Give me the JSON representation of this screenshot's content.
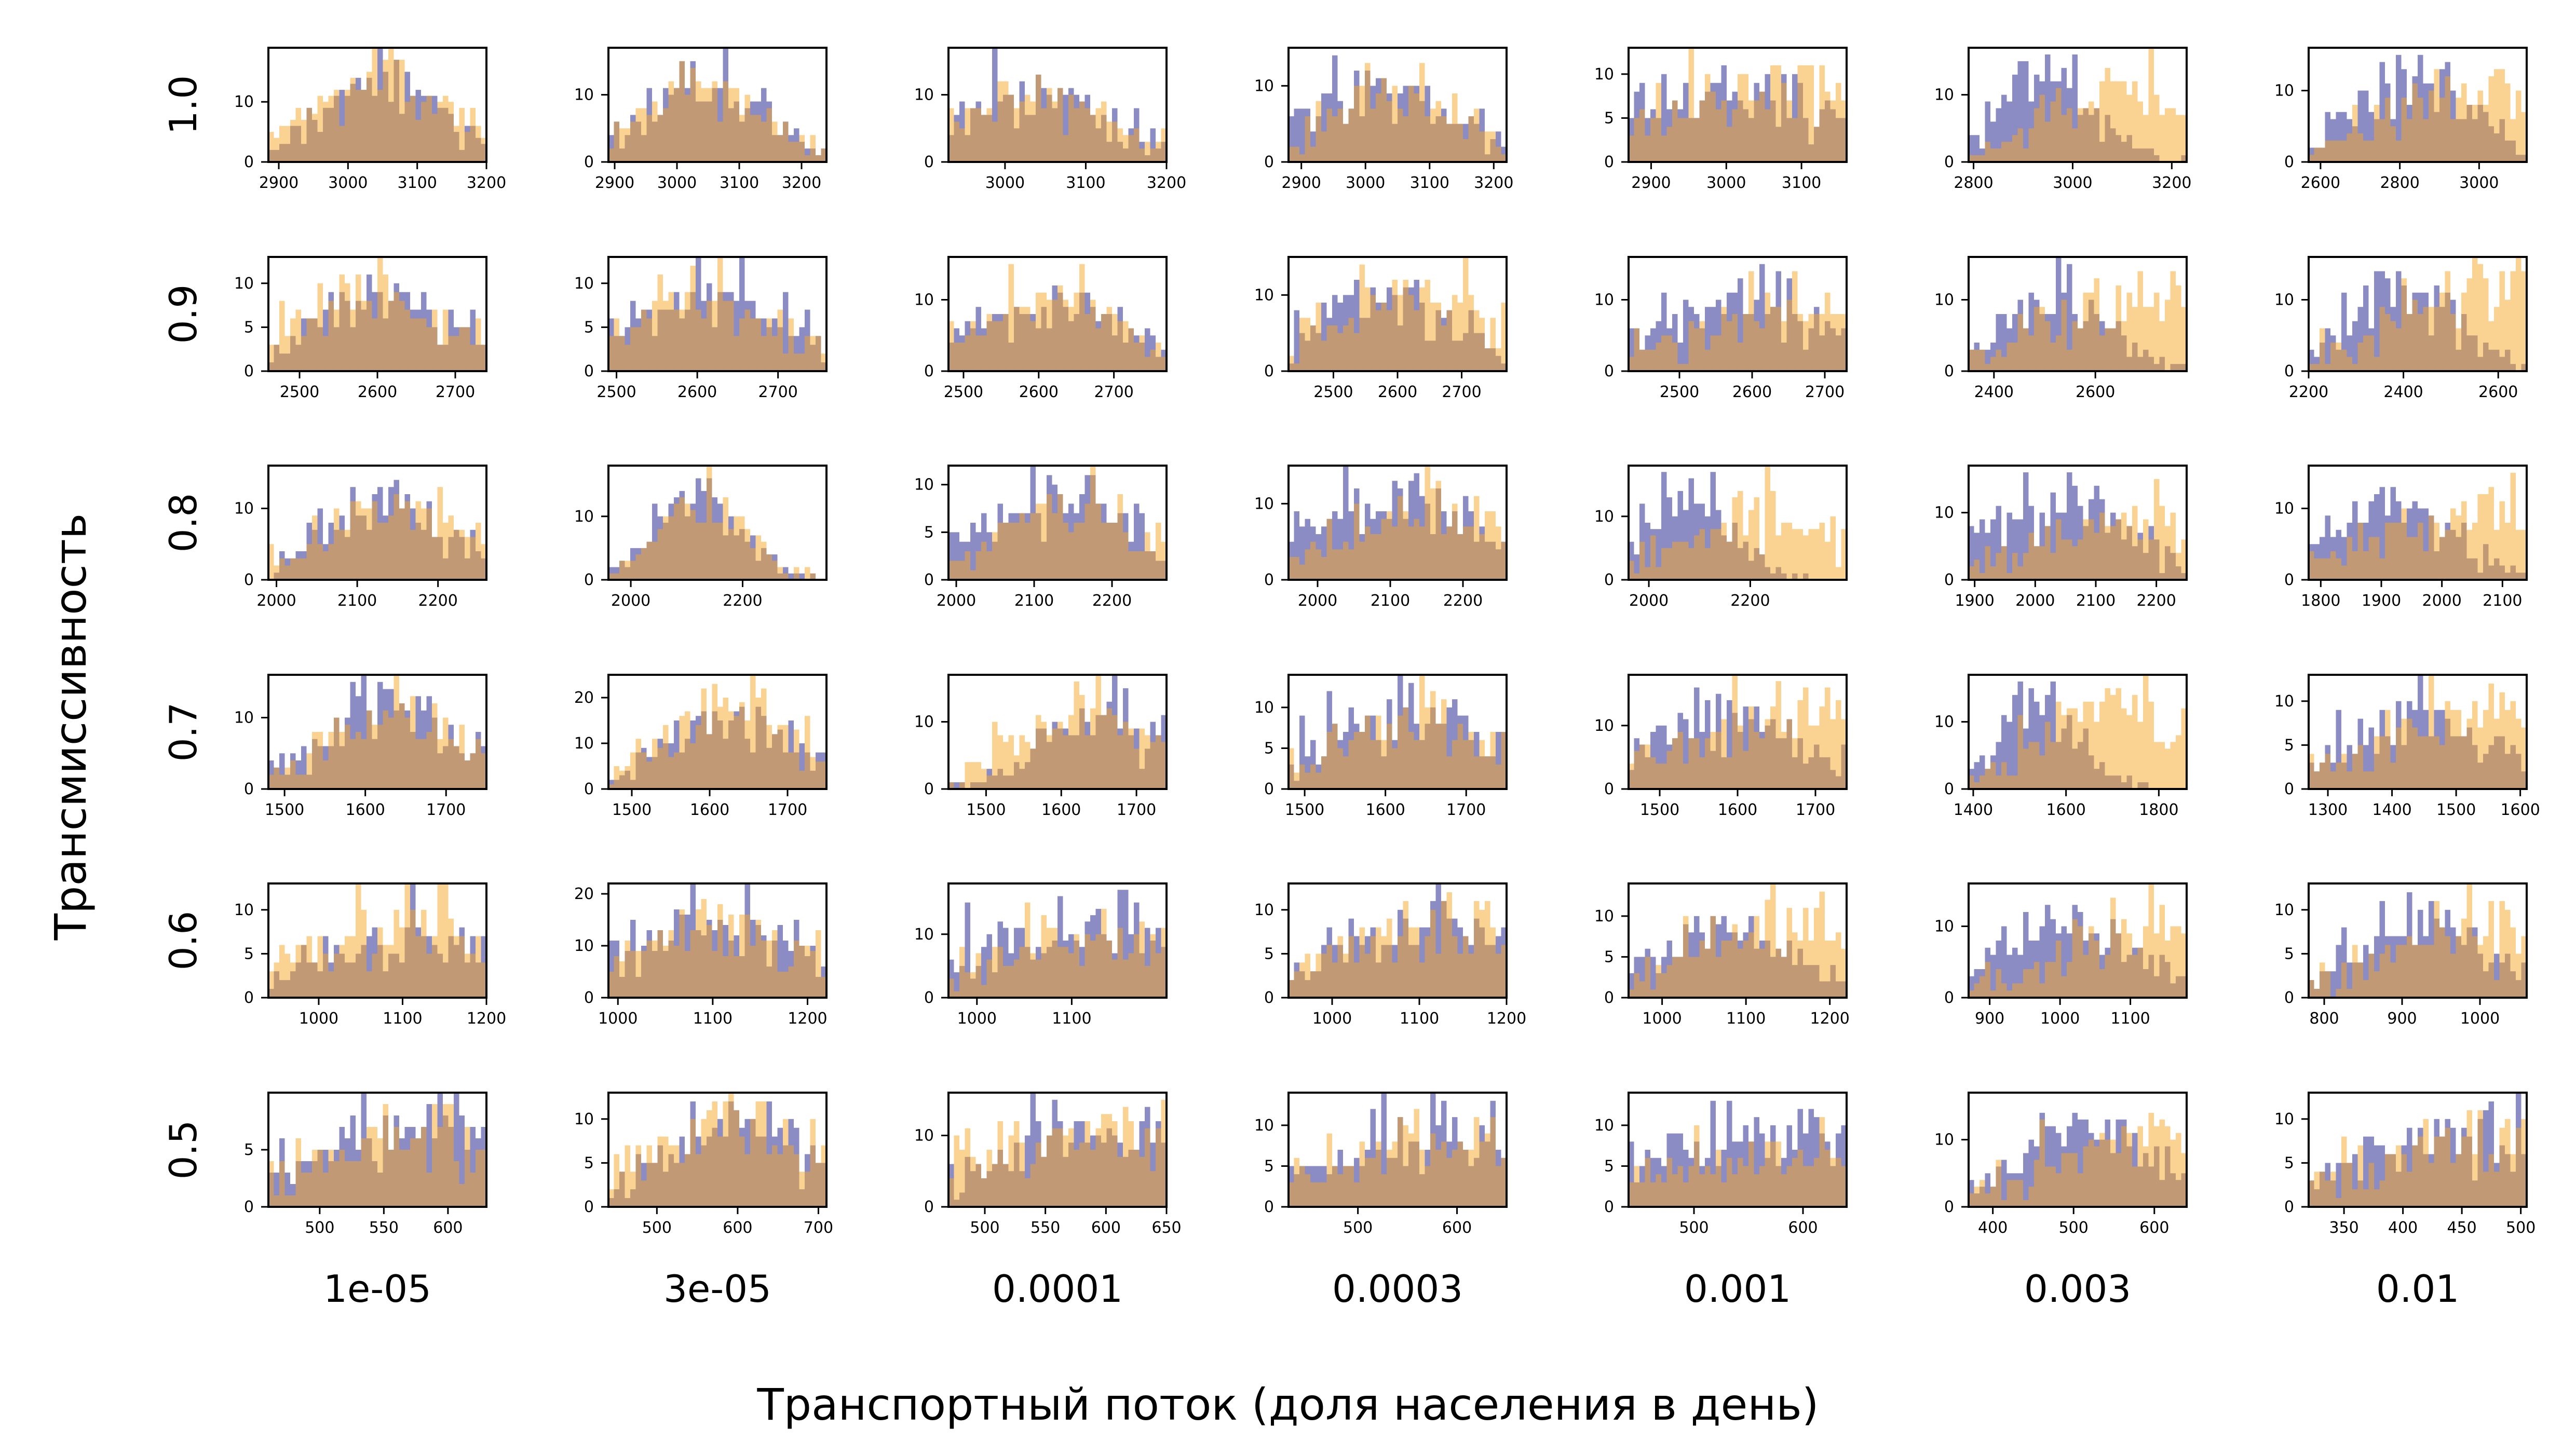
{
  "figure": {
    "xlabel": "Транспортный поток (доля населения в день)",
    "ylabel": "Трансмиссивность",
    "col_labels": [
      "1e-05",
      "3e-05",
      "0.0001",
      "0.0003",
      "0.001",
      "0.003",
      "0.01"
    ],
    "row_labels": [
      "1.0",
      "0.9",
      "0.8",
      "0.7",
      "0.6",
      "0.5"
    ],
    "colors": {
      "series_a": "#1a1a8c",
      "series_b": "#f5a623",
      "series_alpha": 0.5
    }
  },
  "chart_data": {
    "type": "histogram",
    "panels": [
      [
        {
          "xt": [
            2900,
            3000,
            3100,
            3200
          ],
          "xr": [
            2885,
            3200
          ],
          "yt": [
            0,
            10
          ],
          "ymax": 19,
          "a": [
            2978,
            3050,
            60
          ],
          "b": [
            2960,
            3040,
            70
          ]
        },
        {
          "xt": [
            2900,
            3000,
            3100,
            3200
          ],
          "xr": [
            2890,
            3240
          ],
          "yt": [
            0,
            10
          ],
          "ymax": 17,
          "a": [
            2955,
            3040,
            60
          ],
          "b": [
            2960,
            3040,
            65
          ]
        },
        {
          "xt": [
            3000,
            3100,
            3200
          ],
          "xr": [
            2930,
            3200
          ],
          "yt": [
            0,
            10
          ],
          "ymax": 17,
          "a": [
            2960,
            3040,
            60
          ],
          "b": [
            2950,
            3030,
            70
          ]
        },
        {
          "xt": [
            2900,
            3000,
            3100,
            3200
          ],
          "xr": [
            2880,
            3220
          ],
          "yt": [
            0,
            10
          ],
          "ymax": 15,
          "a": [
            2900,
            3010,
            55
          ],
          "b": [
            2940,
            3040,
            70
          ]
        },
        {
          "xt": [
            2900,
            3000,
            3100
          ],
          "xr": [
            2870,
            3160
          ],
          "yt": [
            0,
            5,
            10
          ],
          "ymax": 13,
          "a": [
            2880,
            3000,
            60
          ],
          "b": [
            2930,
            3060,
            55
          ]
        },
        {
          "xt": [
            2800,
            3000,
            3200
          ],
          "xr": [
            2790,
            3230
          ],
          "yt": [
            0,
            10
          ],
          "ymax": 17,
          "a": [
            2850,
            2940,
            60
          ],
          "b": [
            2950,
            3080,
            65
          ]
        },
        {
          "xt": [
            2600,
            2800,
            3000
          ],
          "xr": [
            2570,
            3120
          ],
          "yt": [
            0,
            10
          ],
          "ymax": 16,
          "a": [
            2700,
            2840,
            60
          ],
          "b": [
            2780,
            2980,
            70
          ]
        }
      ],
      [
        {
          "xt": [
            2500,
            2600,
            2700
          ],
          "xr": [
            2460,
            2740
          ],
          "yt": [
            0,
            5,
            10
          ],
          "ymax": 13,
          "a": [
            2520,
            2600,
            55
          ],
          "b": [
            2520,
            2600,
            60
          ]
        },
        {
          "xt": [
            2500,
            2600,
            2700
          ],
          "xr": [
            2490,
            2760
          ],
          "yt": [
            0,
            5,
            10
          ],
          "ymax": 13,
          "a": [
            2510,
            2600,
            55
          ],
          "b": [
            2520,
            2610,
            60
          ]
        },
        {
          "xt": [
            2500,
            2600,
            2700
          ],
          "xr": [
            2480,
            2770
          ],
          "yt": [
            0,
            10
          ],
          "ymax": 16,
          "a": [
            2510,
            2610,
            60
          ],
          "b": [
            2530,
            2610,
            65
          ]
        },
        {
          "xt": [
            2500,
            2600,
            2700
          ],
          "xr": [
            2430,
            2770
          ],
          "yt": [
            0,
            10
          ],
          "ymax": 15,
          "a": [
            2470,
            2580,
            60
          ],
          "b": [
            2510,
            2630,
            65
          ]
        },
        {
          "xt": [
            2500,
            2600,
            2700
          ],
          "xr": [
            2430,
            2730
          ],
          "yt": [
            0,
            10
          ],
          "ymax": 16,
          "a": [
            2460,
            2570,
            60
          ],
          "b": [
            2540,
            2680,
            60
          ]
        },
        {
          "xt": [
            2400,
            2600
          ],
          "xr": [
            2350,
            2780
          ],
          "yt": [
            0,
            10
          ],
          "ymax": 16,
          "a": [
            2430,
            2520,
            60
          ],
          "b": [
            2520,
            2680,
            65
          ]
        },
        {
          "xt": [
            2200,
            2400,
            2600
          ],
          "xr": [
            2200,
            2660
          ],
          "yt": [
            0,
            10
          ],
          "ymax": 16,
          "a": [
            2300,
            2400,
            60
          ],
          "b": [
            2390,
            2570,
            65
          ]
        }
      ],
      [
        {
          "xt": [
            2000,
            2100,
            2200
          ],
          "xr": [
            1990,
            2260
          ],
          "yt": [
            0,
            10
          ],
          "ymax": 16,
          "a": [
            2080,
            2140,
            60
          ],
          "b": [
            2070,
            2150,
            65
          ]
        },
        {
          "xt": [
            2000,
            2200
          ],
          "xr": [
            1960,
            2350
          ],
          "yt": [
            0,
            10
          ],
          "ymax": 18,
          "a": [
            2060,
            2120,
            60
          ],
          "b": [
            2070,
            2130,
            65
          ]
        },
        {
          "xt": [
            2000,
            2100,
            2200
          ],
          "xr": [
            1990,
            2270
          ],
          "yt": [
            0,
            5,
            10
          ],
          "ymax": 12,
          "a": [
            2050,
            2130,
            60
          ],
          "b": [
            2060,
            2140,
            65
          ]
        },
        {
          "xt": [
            2000,
            2100,
            2200
          ],
          "xr": [
            1960,
            2260
          ],
          "yt": [
            0,
            10
          ],
          "ymax": 15,
          "a": [
            2020,
            2130,
            60
          ],
          "b": [
            2040,
            2150,
            65
          ]
        },
        {
          "xt": [
            2000,
            2200
          ],
          "xr": [
            1960,
            2390
          ],
          "yt": [
            0,
            10
          ],
          "ymax": 18,
          "a": [
            2010,
            2080,
            60
          ],
          "b": [
            2070,
            2220,
            60
          ]
        },
        {
          "xt": [
            1900,
            2000,
            2100,
            2200
          ],
          "xr": [
            1890,
            2250
          ],
          "yt": [
            0,
            10
          ],
          "ymax": 17,
          "a": [
            1940,
            2040,
            60
          ],
          "b": [
            2020,
            2160,
            65
          ]
        },
        {
          "xt": [
            1800,
            1900,
            2000,
            2100
          ],
          "xr": [
            1780,
            2140
          ],
          "yt": [
            0,
            10
          ],
          "ymax": 16,
          "a": [
            1830,
            1910,
            60
          ],
          "b": [
            1910,
            2060,
            65
          ]
        }
      ],
      [
        {
          "xt": [
            1500,
            1600,
            1700
          ],
          "xr": [
            1480,
            1750
          ],
          "yt": [
            0,
            10
          ],
          "ymax": 16,
          "a": [
            1560,
            1630,
            55
          ],
          "b": [
            1560,
            1630,
            65
          ]
        },
        {
          "xt": [
            1500,
            1600,
            1700
          ],
          "xr": [
            1470,
            1750
          ],
          "yt": [
            0,
            10,
            20
          ],
          "ymax": 25,
          "a": [
            1560,
            1630,
            55
          ],
          "b": [
            1560,
            1630,
            60
          ]
        },
        {
          "xt": [
            1500,
            1600,
            1700
          ],
          "xr": [
            1450,
            1740
          ],
          "yt": [
            0,
            10
          ],
          "ymax": 17,
          "a": [
            1580,
            1640,
            60
          ],
          "b": [
            1560,
            1640,
            65
          ]
        },
        {
          "xt": [
            1500,
            1600,
            1700
          ],
          "xr": [
            1480,
            1750
          ],
          "yt": [
            0,
            5,
            10
          ],
          "ymax": 14,
          "a": [
            1520,
            1620,
            60
          ],
          "b": [
            1550,
            1640,
            65
          ]
        },
        {
          "xt": [
            1500,
            1600,
            1700
          ],
          "xr": [
            1460,
            1740
          ],
          "yt": [
            0,
            10
          ],
          "ymax": 18,
          "a": [
            1500,
            1580,
            60
          ],
          "b": [
            1540,
            1660,
            60
          ]
        },
        {
          "xt": [
            1400,
            1600,
            1800
          ],
          "xr": [
            1390,
            1860
          ],
          "yt": [
            0,
            10
          ],
          "ymax": 17,
          "a": [
            1470,
            1540,
            60
          ],
          "b": [
            1560,
            1690,
            65
          ]
        },
        {
          "xt": [
            1300,
            1400,
            1500,
            1600
          ],
          "xr": [
            1270,
            1610
          ],
          "yt": [
            0,
            5,
            10
          ],
          "ymax": 13,
          "a": [
            1340,
            1440,
            60
          ],
          "b": [
            1400,
            1550,
            65
          ]
        }
      ],
      [
        {
          "xt": [
            1000,
            1100,
            1200
          ],
          "xr": [
            940,
            1200
          ],
          "yt": [
            0,
            5,
            10
          ],
          "ymax": 13,
          "a": [
            1000,
            1100,
            55
          ],
          "b": [
            1010,
            1100,
            65
          ]
        },
        {
          "xt": [
            1000,
            1100,
            1200
          ],
          "xr": [
            990,
            1220
          ],
          "yt": [
            0,
            10,
            20
          ],
          "ymax": 22,
          "a": [
            1020,
            1110,
            55
          ],
          "b": [
            1030,
            1100,
            60
          ]
        },
        {
          "xt": [
            1000,
            1100
          ],
          "xr": [
            970,
            1200
          ],
          "yt": [
            0,
            10
          ],
          "ymax": 18,
          "a": [
            1010,
            1120,
            60
          ],
          "b": [
            1010,
            1120,
            60
          ]
        },
        {
          "xt": [
            1000,
            1100,
            1200
          ],
          "xr": [
            950,
            1200
          ],
          "yt": [
            0,
            5,
            10
          ],
          "ymax": 13,
          "a": [
            1010,
            1110,
            60
          ],
          "b": [
            1020,
            1120,
            65
          ]
        },
        {
          "xt": [
            1000,
            1100,
            1200
          ],
          "xr": [
            960,
            1220
          ],
          "yt": [
            0,
            5,
            10
          ],
          "ymax": 14,
          "a": [
            1000,
            1070,
            60
          ],
          "b": [
            1030,
            1140,
            60
          ]
        },
        {
          "xt": [
            900,
            1000,
            1100
          ],
          "xr": [
            870,
            1180
          ],
          "yt": [
            0,
            10
          ],
          "ymax": 16,
          "a": [
            940,
            1020,
            60
          ],
          "b": [
            1010,
            1130,
            65
          ]
        },
        {
          "xt": [
            800,
            900,
            1000
          ],
          "xr": [
            780,
            1060
          ],
          "yt": [
            0,
            5,
            10
          ],
          "ymax": 13,
          "a": [
            840,
            930,
            60
          ],
          "b": [
            900,
            1020,
            65
          ]
        }
      ],
      [
        {
          "xt": [
            500,
            550,
            600
          ],
          "xr": [
            460,
            630
          ],
          "yt": [
            0,
            5
          ],
          "ymax": 10,
          "a": [
            510,
            570,
            55
          ],
          "b": [
            510,
            570,
            60
          ]
        },
        {
          "xt": [
            500,
            600,
            700
          ],
          "xr": [
            440,
            710
          ],
          "yt": [
            0,
            5,
            10
          ],
          "ymax": 13,
          "a": [
            520,
            600,
            55
          ],
          "b": [
            500,
            590,
            65
          ]
        },
        {
          "xt": [
            500,
            550,
            600,
            650
          ],
          "xr": [
            470,
            650
          ],
          "yt": [
            0,
            10
          ],
          "ymax": 16,
          "a": [
            510,
            590,
            60
          ],
          "b": [
            500,
            590,
            65
          ]
        },
        {
          "xt": [
            500,
            600
          ],
          "xr": [
            430,
            650
          ],
          "yt": [
            0,
            5,
            10
          ],
          "ymax": 14,
          "a": [
            480,
            580,
            60
          ],
          "b": [
            500,
            590,
            65
          ]
        },
        {
          "xt": [
            500,
            600
          ],
          "xr": [
            440,
            640
          ],
          "yt": [
            0,
            5,
            10
          ],
          "ymax": 14,
          "a": [
            460,
            560,
            60
          ],
          "b": [
            480,
            610,
            65
          ]
        },
        {
          "xt": [
            400,
            500,
            600
          ],
          "xr": [
            370,
            640
          ],
          "yt": [
            0,
            10
          ],
          "ymax": 17,
          "a": [
            440,
            510,
            60
          ],
          "b": [
            480,
            590,
            65
          ]
        },
        {
          "xt": [
            350,
            400,
            450,
            500
          ],
          "xr": [
            320,
            505
          ],
          "yt": [
            0,
            5,
            10
          ],
          "ymax": 13,
          "a": [
            380,
            460,
            60
          ],
          "b": [
            380,
            470,
            65
          ]
        }
      ]
    ]
  }
}
